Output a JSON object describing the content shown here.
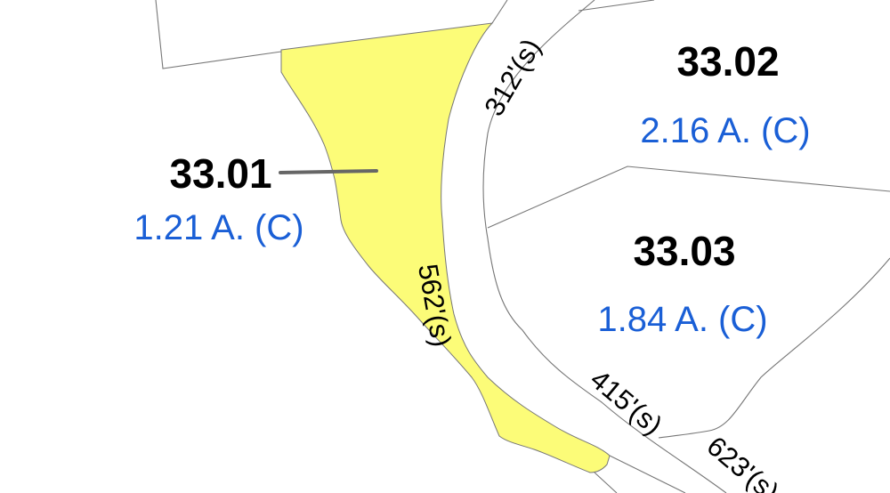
{
  "parcels": [
    {
      "id": "33.01",
      "area": "1.21 A. (C)",
      "highlighted": true
    },
    {
      "id": "33.02",
      "area": "2.16 A. (C)",
      "highlighted": false
    },
    {
      "id": "33.03",
      "area": "1.84 A. (C)",
      "highlighted": false
    }
  ],
  "dimensions": [
    "312'(s)",
    "562'(s)",
    "415'(s)",
    "623'(s)"
  ],
  "colors": {
    "highlight": "#fcfc78",
    "area_text": "#1a5fd6",
    "id_text": "#000000",
    "leader": "#666666"
  }
}
